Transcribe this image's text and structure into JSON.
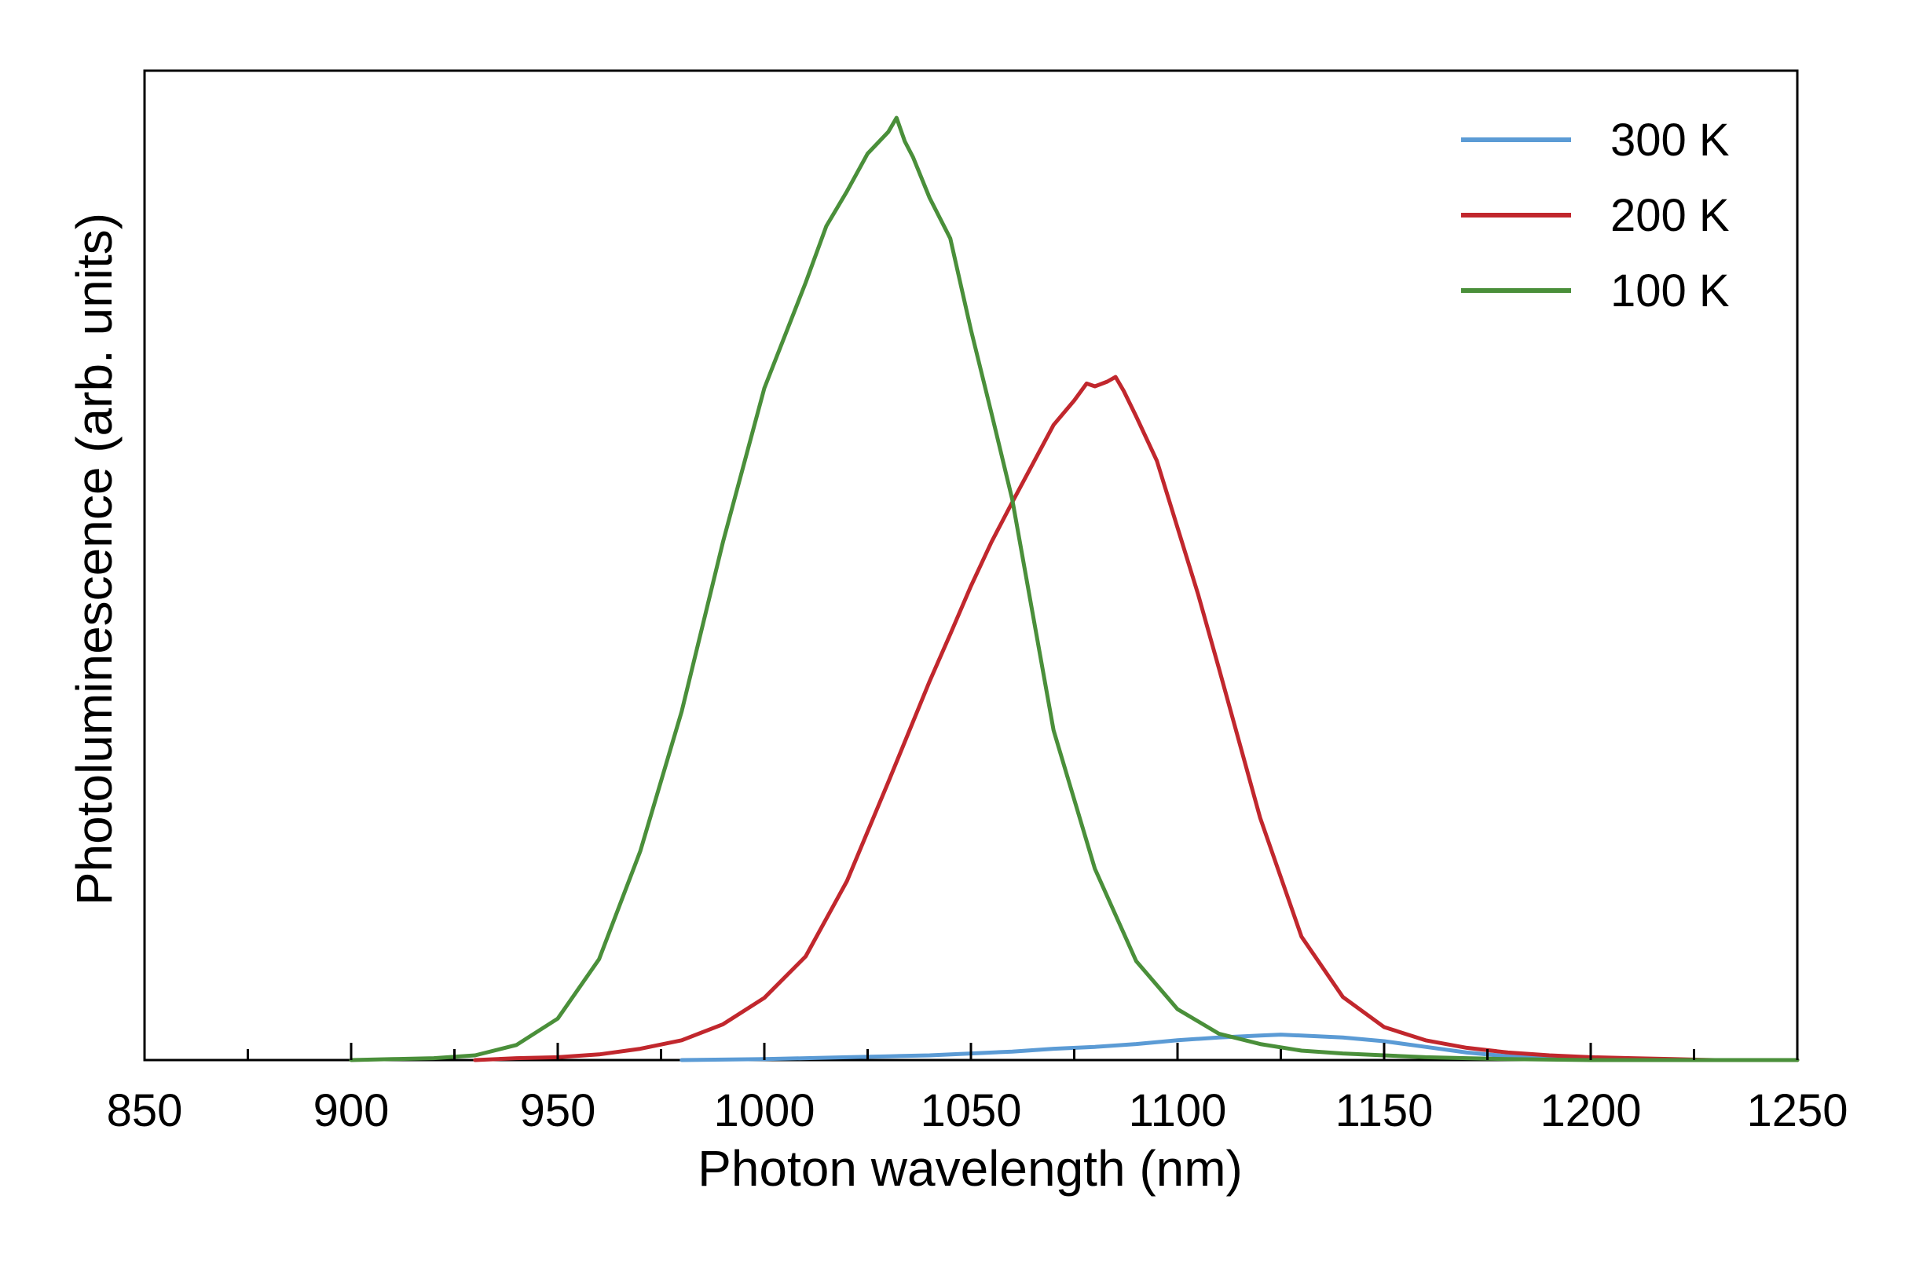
{
  "chart_data": {
    "type": "line",
    "title": "",
    "xlabel": "Photon wavelength (nm)",
    "ylabel": "Photoluminescence (arb. units)",
    "xlim": [
      850,
      1250
    ],
    "ylim": [
      0,
      1.05
    ],
    "x_ticks": [
      850,
      900,
      950,
      1000,
      1050,
      1100,
      1150,
      1200,
      1250
    ],
    "x_tick_labels": [
      "850",
      "900",
      "950",
      "1000",
      "1050",
      "1100",
      "1150",
      "1200",
      "1250"
    ],
    "x_minor_ticks": [
      875,
      925,
      975,
      1025,
      1075,
      1125,
      1175,
      1225
    ],
    "y_ticks_shown": false,
    "grid": false,
    "legend_position": "top-right",
    "series": [
      {
        "name": "300 K",
        "color": "#5b9bd5",
        "x": [
          980,
          1000,
          1010,
          1020,
          1030,
          1040,
          1050,
          1060,
          1070,
          1080,
          1090,
          1100,
          1110,
          1120,
          1125,
          1130,
          1135,
          1140,
          1150,
          1160,
          1170,
          1180,
          1190,
          1200,
          1210,
          1220,
          1230,
          1240,
          1250
        ],
        "y": [
          0.0,
          0.001,
          0.002,
          0.003,
          0.004,
          0.005,
          0.007,
          0.009,
          0.012,
          0.014,
          0.017,
          0.021,
          0.024,
          0.026,
          0.027,
          0.026,
          0.025,
          0.024,
          0.02,
          0.014,
          0.008,
          0.004,
          0.002,
          0.001,
          0.0,
          0.0,
          0.0,
          0.0,
          0.0
        ]
      },
      {
        "name": "200 K",
        "color": "#c1272d",
        "x": [
          930,
          940,
          950,
          960,
          970,
          980,
          990,
          1000,
          1010,
          1020,
          1030,
          1040,
          1045,
          1050,
          1055,
          1060,
          1065,
          1070,
          1075,
          1078,
          1080,
          1083,
          1085,
          1087,
          1090,
          1095,
          1100,
          1105,
          1110,
          1120,
          1130,
          1140,
          1150,
          1160,
          1170,
          1180,
          1190,
          1200,
          1210,
          1220,
          1230,
          1240,
          1250
        ],
        "y": [
          0.0,
          0.002,
          0.003,
          0.006,
          0.012,
          0.021,
          0.038,
          0.066,
          0.11,
          0.19,
          0.295,
          0.402,
          0.452,
          0.503,
          0.55,
          0.592,
          0.633,
          0.674,
          0.7,
          0.718,
          0.715,
          0.72,
          0.725,
          0.71,
          0.683,
          0.636,
          0.565,
          0.494,
          0.416,
          0.257,
          0.131,
          0.067,
          0.035,
          0.021,
          0.013,
          0.008,
          0.005,
          0.003,
          0.002,
          0.001,
          0.0,
          0.0,
          0.0
        ]
      },
      {
        "name": "100 K",
        "color": "#4a8f3a",
        "x": [
          900,
          910,
          920,
          930,
          940,
          950,
          960,
          970,
          980,
          990,
          1000,
          1010,
          1015,
          1020,
          1025,
          1030,
          1032,
          1034,
          1036,
          1040,
          1045,
          1050,
          1055,
          1060,
          1070,
          1080,
          1090,
          1100,
          1110,
          1120,
          1130,
          1140,
          1150,
          1160,
          1170,
          1180,
          1200,
          1220,
          1250
        ],
        "y": [
          0.0,
          0.001,
          0.002,
          0.005,
          0.016,
          0.044,
          0.107,
          0.222,
          0.37,
          0.55,
          0.713,
          0.825,
          0.885,
          0.922,
          0.962,
          0.985,
          1.0,
          0.975,
          0.958,
          0.915,
          0.872,
          0.775,
          0.686,
          0.595,
          0.35,
          0.203,
          0.105,
          0.054,
          0.028,
          0.017,
          0.01,
          0.007,
          0.005,
          0.003,
          0.002,
          0.001,
          0.0,
          0.0,
          0.0
        ]
      }
    ]
  }
}
